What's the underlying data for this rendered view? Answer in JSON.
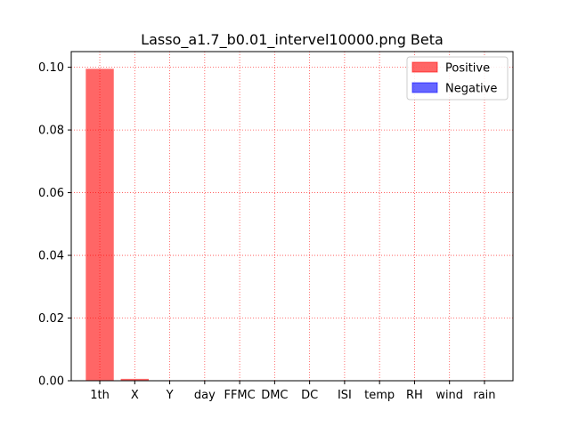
{
  "chart_data": {
    "type": "bar",
    "title": "Lasso_a1.7_b0.01_intervel10000.png Beta",
    "xlabel": "",
    "ylabel": "",
    "categories": [
      "1th",
      "X",
      "Y",
      "day",
      "FFMC",
      "DMC",
      "DC",
      "ISI",
      "temp",
      "RH",
      "wind",
      "rain"
    ],
    "series": [
      {
        "name": "Positive",
        "color": "#ff0000",
        "values": [
          0.0995,
          0.0006,
          0,
          0,
          0,
          0,
          0,
          0,
          0,
          0,
          0,
          0
        ]
      },
      {
        "name": "Negative",
        "color": "#0000ff",
        "values": [
          0,
          0,
          0,
          0,
          0,
          0,
          0,
          0,
          0,
          0,
          0,
          0
        ]
      }
    ],
    "ylim": [
      0,
      0.105
    ],
    "yticks": [
      "0.00",
      "0.02",
      "0.04",
      "0.06",
      "0.08",
      "0.10"
    ],
    "grid": true,
    "grid_style": "dotted",
    "grid_color": "#ff0000",
    "legend": "top-right"
  }
}
